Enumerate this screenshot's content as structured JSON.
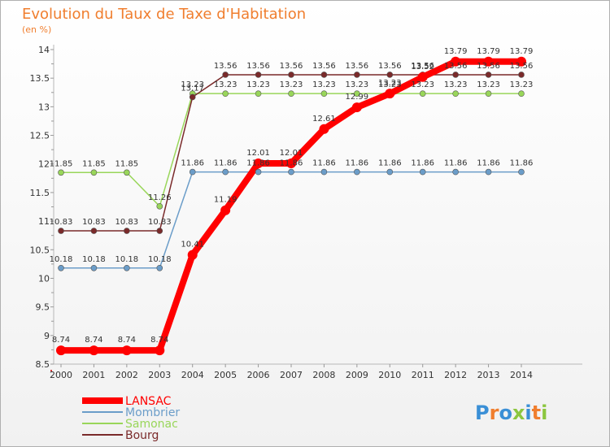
{
  "chart_data": {
    "type": "line",
    "title": "Evolution du Taux de Taxe d'Habitation",
    "unit_label": "(en %)",
    "x": [
      "2000",
      "2001",
      "2002",
      "2003",
      "2004",
      "2005",
      "2006",
      "2007",
      "2008",
      "2009",
      "2010",
      "2011",
      "2012",
      "2013",
      "2014"
    ],
    "ylim": [
      8.5,
      14
    ],
    "yticks": [
      "8.5",
      "9",
      "9.5",
      "10",
      "10.5",
      "11",
      "11.5",
      "12",
      "12.5",
      "13",
      "13.5",
      "14"
    ],
    "grid": false,
    "legend_position": "bottom-left",
    "series": [
      {
        "name": "LANSAC",
        "color": "#ff0000",
        "values": [
          8.74,
          8.74,
          8.74,
          8.74,
          10.41,
          11.19,
          12.01,
          12.01,
          12.61,
          12.99,
          13.23,
          13.52,
          13.79,
          13.79,
          13.79
        ]
      },
      {
        "name": "Mombrier",
        "color": "#6b9dc9",
        "values": [
          10.18,
          10.18,
          10.18,
          10.18,
          11.86,
          11.86,
          11.86,
          11.86,
          11.86,
          11.86,
          11.86,
          11.86,
          11.86,
          11.86,
          11.86
        ]
      },
      {
        "name": "Samonac",
        "color": "#99d65a",
        "values": [
          11.85,
          11.85,
          11.85,
          11.26,
          13.23,
          13.23,
          13.23,
          13.23,
          13.23,
          13.23,
          13.23,
          13.23,
          13.23,
          13.23,
          13.23
        ]
      },
      {
        "name": "Bourg",
        "color": "#7a2a2a",
        "values": [
          10.83,
          10.83,
          10.83,
          10.83,
          13.17,
          13.56,
          13.56,
          13.56,
          13.56,
          13.56,
          13.56,
          13.56,
          13.56,
          13.56,
          13.56
        ]
      }
    ]
  },
  "logo": {
    "text": "Proxiti",
    "colors": [
      "#3a8fd6",
      "#f07e2e",
      "#3a8fd6",
      "#8cc63f",
      "#3a8fd6",
      "#f07e2e",
      "#8cc63f"
    ]
  }
}
